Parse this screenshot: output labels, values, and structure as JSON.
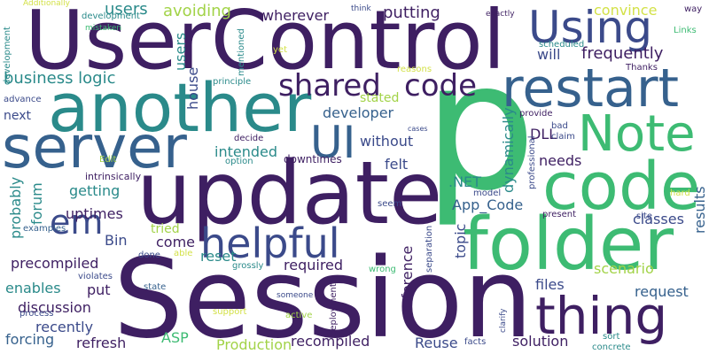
{
  "colors": {
    "background": "#ffffff",
    "dark_purple": "#3e1f62",
    "indigo": "#3b4a8a",
    "blue": "#36618d",
    "teal": "#2a8a8a",
    "green": "#3dbb73",
    "lime": "#a2d348",
    "yellow": "#d3e148"
  },
  "words": {
    "usercontrol": "UserControl",
    "p": "p",
    "session": "Session",
    "update": "update",
    "another": "another",
    "server": "server",
    "folder": "folder",
    "code_big": "code",
    "restart": "restart",
    "note": "Note",
    "thing": "thing",
    "using": "Using",
    "helpful": "helpful",
    "ui": "UI",
    "em": "em",
    "shared": "shared",
    "code_small": "code",
    "business_logic": "business logic",
    "will": "will",
    "frequently": "frequently",
    "users_top": "users",
    "avoiding": "avoiding",
    "wherever": "wherever",
    "putting": "putting",
    "convince": "convince",
    "additionally": "Additionally",
    "development_top": "development",
    "development_left": "development",
    "mistaken": "mistaken",
    "mentioned": "mentioned",
    "think": "think",
    "exactly": "exactly",
    "way": "way",
    "links": "Links",
    "scheduled": "scheduled",
    "yet": "yet",
    "reasons": "reasons",
    "thanks": "Thanks",
    "principle": "principle",
    "house": "house",
    "stated": "stated",
    "advance": "advance",
    "next": "next",
    "developer": "developer",
    "provide": "provide",
    "dll": "DLL",
    "bad": "bad",
    "claim": "claim",
    "professional": "professional",
    "cases": "cases",
    "decide": "decide",
    "without": "without",
    "dynamically": "dynamically",
    "intended": "intended",
    "edit": "Edit",
    "option": "option",
    "downtimes": "downtimes",
    "felt": "felt",
    "needs": "needs",
    "intrinsically": "intrinsically",
    "net": ".NET",
    "model": "model",
    "getting": "getting",
    "hard": "hard",
    "site": "site",
    "app_code": "App_Code",
    "forum": "forum",
    "probably": "probably",
    "uptimes": "uptimes",
    "seem": "seem",
    "present": "present",
    "classes": "classes",
    "results": "results",
    "examples": "examples",
    "bin": "Bin",
    "come": "come",
    "tried": "tried",
    "topic": "topic",
    "reference": "reference",
    "separation": "separation",
    "done": "done",
    "able": "able",
    "precompiled": "precompiled",
    "reset": "reset",
    "required": "required",
    "grossly": "grossly",
    "wrong": "wrong",
    "scenario": "scenario",
    "enables": "enables",
    "violates": "violates",
    "put": "put",
    "files": "files",
    "request": "request",
    "state": "state",
    "discussion": "discussion",
    "someone": "someone",
    "deployment": "deployment",
    "process": "process",
    "support": "support",
    "active": "active",
    "recently": "recently",
    "clarify": "clarify",
    "forcing": "forcing",
    "refresh": "refresh",
    "asp": "ASP",
    "production": "Production",
    "recompiled": "recompiled",
    "reuse": "Reuse",
    "solution": "solution",
    "facts": "facts",
    "sort": "sort",
    "concrete": "concrete",
    "users_left": "users"
  }
}
